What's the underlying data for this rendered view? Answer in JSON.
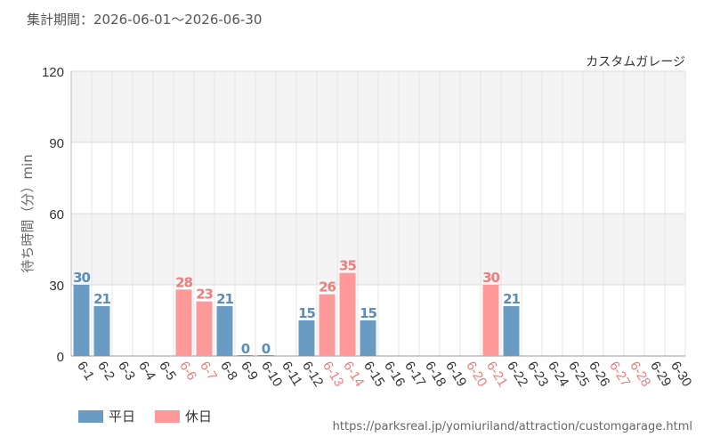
{
  "period": {
    "label": "集計期間：",
    "range": "2026-06-01～2026-06-30"
  },
  "source_url": "https://parksreal.jp/yomiuriland/attraction/customgarage.html",
  "colors": {
    "weekday": "#6a9cc3",
    "holiday": "#ff9999",
    "weekday_label": "#5b8db5",
    "holiday_label": "#f07c7c"
  },
  "legend": [
    {
      "label": "平日",
      "kind": "weekday"
    },
    {
      "label": "休日",
      "kind": "holiday"
    }
  ],
  "chart_data": {
    "type": "bar",
    "title": "カスタムガレージ",
    "xlabel": "",
    "ylabel": "待ち時間（分）min",
    "ylim": [
      0,
      120
    ],
    "yticks": [
      0,
      30,
      60,
      90,
      120
    ],
    "grid": true,
    "categories": [
      "6-1",
      "6-2",
      "6-3",
      "6-4",
      "6-5",
      "6-6",
      "6-7",
      "6-8",
      "6-9",
      "6-10",
      "6-11",
      "6-12",
      "6-13",
      "6-14",
      "6-15",
      "6-16",
      "6-17",
      "6-18",
      "6-19",
      "6-20",
      "6-21",
      "6-22",
      "6-23",
      "6-24",
      "6-25",
      "6-26",
      "6-27",
      "6-28",
      "6-29",
      "6-30"
    ],
    "values": [
      30,
      21,
      null,
      null,
      null,
      28,
      23,
      21,
      0,
      0,
      null,
      15,
      26,
      35,
      15,
      null,
      null,
      null,
      null,
      null,
      30,
      21,
      null,
      null,
      null,
      null,
      null,
      null,
      null,
      null
    ],
    "day_type": [
      "weekday",
      "weekday",
      "weekday",
      "weekday",
      "weekday",
      "holiday",
      "holiday",
      "weekday",
      "weekday",
      "weekday",
      "weekday",
      "weekday",
      "holiday",
      "holiday",
      "weekday",
      "weekday",
      "weekday",
      "weekday",
      "weekday",
      "holiday",
      "holiday",
      "weekday",
      "weekday",
      "weekday",
      "weekday",
      "weekday",
      "holiday",
      "holiday",
      "weekday",
      "weekday"
    ]
  }
}
